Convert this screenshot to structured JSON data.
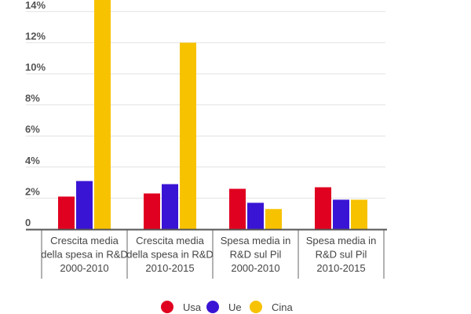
{
  "chart_data": {
    "type": "bar",
    "categories": [
      [
        "Crescita media",
        "della spesa in R&D",
        "2000-2010"
      ],
      [
        "Crescita media",
        "della spesa in R&D",
        "2010-2015"
      ],
      [
        "Spesa media in",
        "R&D sul Pil",
        "2000-2010"
      ],
      [
        "Spesa media in",
        "R&D sul Pil",
        "2010-2015"
      ]
    ],
    "series": [
      {
        "name": "Usa",
        "color": "#e00020",
        "values": [
          2.1,
          2.3,
          2.6,
          2.7
        ]
      },
      {
        "name": "Ue",
        "color": "#3a14d4",
        "values": [
          3.1,
          2.9,
          1.7,
          1.9
        ]
      },
      {
        "name": "Cina",
        "color": "#f7c200",
        "values": [
          15,
          12.0,
          1.3,
          1.9
        ]
      }
    ],
    "yticks": [
      "0",
      "2%",
      "4%",
      "6%",
      "8%",
      "10%",
      "12%",
      "14%"
    ],
    "ytick_values": [
      0,
      2,
      4,
      6,
      8,
      10,
      12,
      14
    ],
    "ylim": [
      0,
      14.8
    ],
    "grid": true,
    "legend_placement": "bottom"
  }
}
